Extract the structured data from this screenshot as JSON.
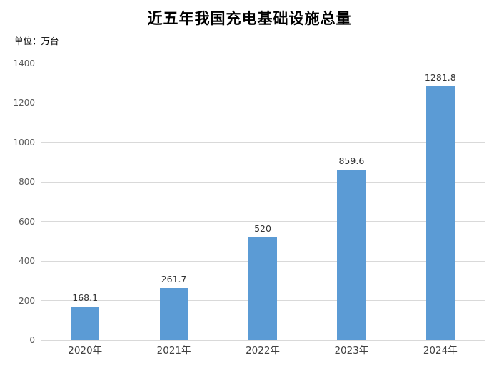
{
  "title": "近五年我国充电基础设施总量",
  "unit_label": "单位：万台",
  "colors": {
    "bar": "#5b9bd5",
    "gridline": "#d9d9d9",
    "y_tick_label": "#595959",
    "x_category_label": "#404040",
    "data_label": "#333333",
    "background": "#ffffff",
    "title_text": "#000000"
  },
  "chart_data": {
    "type": "bar",
    "title": "近五年我国充电基础设施总量",
    "unit": "单位：万台",
    "categories": [
      "2020年",
      "2021年",
      "2022年",
      "2023年",
      "2024年"
    ],
    "values": [
      168.1,
      261.7,
      520,
      859.6,
      1281.8
    ],
    "data_labels": [
      "168.1",
      "261.7",
      "520",
      "859.6",
      "1281.8"
    ],
    "xlabel": "",
    "ylabel": "万台",
    "ylim": [
      0,
      1400
    ],
    "yticks": [
      0,
      200,
      400,
      600,
      800,
      1000,
      1200,
      1400
    ],
    "grid": true,
    "legend": false
  }
}
